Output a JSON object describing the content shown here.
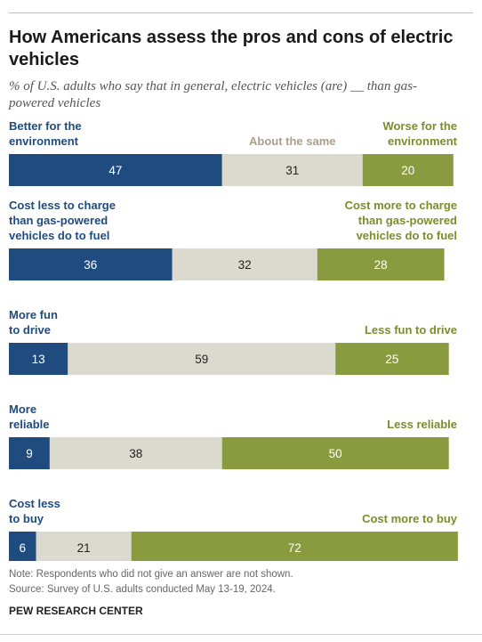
{
  "title": "How Americans assess the pros and cons of electric vehicles",
  "subtitle": "% of U.S. adults who say that in general, electric vehicles (are) __ than gas-powered vehicles",
  "note": "Note: Respondents who did not give an answer are not shown.",
  "source": "Source: Survey of U.S. adults conducted May 13-19, 2024.",
  "brand": "PEW RESEARCH CENTER",
  "colors": {
    "positive": "#1f4b7e",
    "neutral": "#dcd9cf",
    "negative": "#8a9a3e",
    "positive_text": "#1f4b7e",
    "negative_text": "#7c8c2c",
    "neutral_text": "#a8a08a"
  },
  "chart_data": {
    "type": "bar",
    "stacked": true,
    "orientation": "horizontal",
    "segments": [
      "positive",
      "neutral",
      "negative"
    ],
    "rows": [
      {
        "left_label": [
          "Better for the",
          "environment"
        ],
        "middle_label": "About the same",
        "right_label": [
          "Worse for the",
          "environment"
        ],
        "values": [
          47,
          31,
          20
        ]
      },
      {
        "left_label": [
          "Cost less to charge",
          "than gas-powered",
          "vehicles do to fuel"
        ],
        "middle_label": "",
        "right_label": [
          "Cost more to charge",
          "than gas-powered",
          "vehicles do to fuel"
        ],
        "values": [
          36,
          32,
          28
        ]
      },
      {
        "left_label": [
          "More fun",
          "to drive"
        ],
        "middle_label": "",
        "right_label": [
          "Less fun to drive"
        ],
        "values": [
          13,
          59,
          25
        ]
      },
      {
        "left_label": [
          "More",
          "reliable"
        ],
        "middle_label": "",
        "right_label": [
          "Less reliable"
        ],
        "values": [
          9,
          38,
          50
        ]
      },
      {
        "left_label": [
          "Cost less",
          "to buy"
        ],
        "middle_label": "",
        "right_label": [
          "Cost more to buy"
        ],
        "values": [
          6,
          21,
          72
        ]
      }
    ]
  }
}
